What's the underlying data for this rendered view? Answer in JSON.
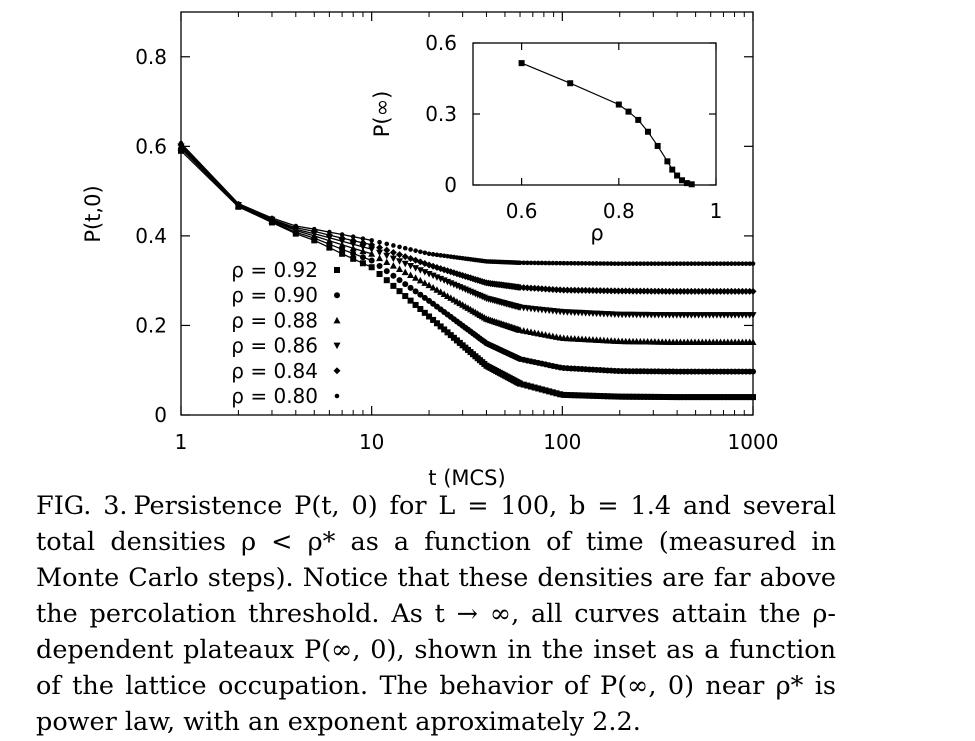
{
  "chart_data": [
    {
      "type": "scatter",
      "ylabel": "P(t,0)",
      "xlabel": "t  (MCS)",
      "xscale": "log",
      "xlim": [
        1,
        1000
      ],
      "ylim": [
        0,
        0.9
      ],
      "x_ticks": [
        {
          "value": 1,
          "label": "1"
        },
        {
          "value": 10,
          "label": "10"
        },
        {
          "value": 100,
          "label": "100"
        },
        {
          "value": 1000,
          "label": "1000"
        }
      ],
      "y_ticks": [
        {
          "value": 0,
          "label": "0"
        },
        {
          "value": 0.2,
          "label": "0.2"
        },
        {
          "value": 0.4,
          "label": "0.4"
        },
        {
          "value": 0.6,
          "label": "0.6"
        },
        {
          "value": 0.8,
          "label": "0.8"
        }
      ],
      "legend_position": "lower-left",
      "series": [
        {
          "name": "ρ = 0.92",
          "marker": "square",
          "plateau": 0.04,
          "x": [
            1,
            2,
            3,
            4,
            5,
            7,
            10,
            20,
            40,
            60,
            100,
            200,
            400,
            1000
          ],
          "y": [
            0.59,
            0.465,
            0.43,
            0.405,
            0.39,
            0.36,
            0.33,
            0.22,
            0.11,
            0.07,
            0.045,
            0.041,
            0.04,
            0.04
          ]
        },
        {
          "name": "ρ = 0.90",
          "marker": "circle",
          "plateau": 0.097,
          "x": [
            1,
            2,
            3,
            4,
            5,
            7,
            10,
            20,
            40,
            60,
            100,
            200,
            400,
            1000
          ],
          "y": [
            0.595,
            0.467,
            0.432,
            0.408,
            0.395,
            0.37,
            0.345,
            0.255,
            0.16,
            0.125,
            0.105,
            0.098,
            0.097,
            0.097
          ]
        },
        {
          "name": "ρ = 0.88",
          "marker": "triangle-up",
          "plateau": 0.163,
          "x": [
            1,
            2,
            3,
            4,
            5,
            7,
            10,
            20,
            40,
            60,
            100,
            200,
            400,
            1000
          ],
          "y": [
            0.598,
            0.468,
            0.434,
            0.412,
            0.4,
            0.38,
            0.36,
            0.29,
            0.215,
            0.19,
            0.172,
            0.165,
            0.163,
            0.163
          ]
        },
        {
          "name": "ρ = 0.86",
          "marker": "triangle-down",
          "plateau": 0.223,
          "x": [
            1,
            2,
            3,
            4,
            5,
            7,
            10,
            20,
            40,
            60,
            100,
            200,
            400,
            1000
          ],
          "y": [
            0.6,
            0.469,
            0.436,
            0.415,
            0.405,
            0.388,
            0.37,
            0.315,
            0.26,
            0.24,
            0.23,
            0.224,
            0.223,
            0.223
          ]
        },
        {
          "name": "ρ = 0.84",
          "marker": "diamond",
          "plateau": 0.276,
          "x": [
            1,
            2,
            3,
            4,
            5,
            7,
            10,
            20,
            40,
            60,
            100,
            200,
            400,
            1000
          ],
          "y": [
            0.603,
            0.47,
            0.437,
            0.418,
            0.41,
            0.395,
            0.38,
            0.335,
            0.295,
            0.285,
            0.279,
            0.277,
            0.276,
            0.276
          ]
        },
        {
          "name": "ρ = 0.80",
          "marker": "dot",
          "plateau": 0.338,
          "x": [
            1,
            2,
            3,
            4,
            5,
            7,
            10,
            20,
            40,
            60,
            100,
            200,
            400,
            1000
          ],
          "y": [
            0.607,
            0.472,
            0.44,
            0.422,
            0.415,
            0.403,
            0.39,
            0.36,
            0.343,
            0.34,
            0.339,
            0.338,
            0.338,
            0.338
          ]
        }
      ]
    },
    {
      "type": "line",
      "ylabel": "P(∞)",
      "xlabel": "ρ",
      "xlim": [
        0.5,
        1.0
      ],
      "ylim": [
        0,
        0.6
      ],
      "x_ticks": [
        {
          "value": 0.6,
          "label": "0.6"
        },
        {
          "value": 0.8,
          "label": "0.8"
        },
        {
          "value": 1.0,
          "label": "1"
        }
      ],
      "y_ticks": [
        {
          "value": 0,
          "label": "0"
        },
        {
          "value": 0.3,
          "label": "0.3"
        },
        {
          "value": 0.6,
          "label": "0.6"
        }
      ],
      "series": [
        {
          "marker": "square",
          "x": [
            0.6,
            0.7,
            0.8,
            0.82,
            0.84,
            0.86,
            0.88,
            0.9,
            0.91,
            0.92,
            0.93,
            0.94,
            0.95
          ],
          "y": [
            0.515,
            0.43,
            0.34,
            0.31,
            0.275,
            0.225,
            0.165,
            0.1,
            0.065,
            0.04,
            0.02,
            0.008,
            0.003
          ]
        }
      ]
    }
  ],
  "caption": {
    "label": "FIG. 3.",
    "text": "Persistence P(t, 0) for L = 100, b = 1.4 and several total densities ρ < ρ* as a function of time (measured in Monte Carlo steps). Notice that these densities are far above the percolation threshold. As t → ∞, all curves attain the ρ-dependent plateaux P(∞, 0), shown in the inset as a function of the lattice occupation. The behavior of P(∞, 0) near ρ* is power law, with an exponent aproximately 2.2."
  }
}
